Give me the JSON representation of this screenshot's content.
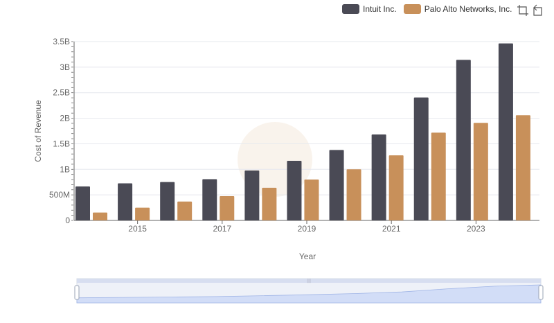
{
  "chart_data": {
    "type": "bar",
    "xlabel": "Year",
    "ylabel": "Cost of Revenue",
    "x": [
      2014,
      2015,
      2016,
      2017,
      2018,
      2019,
      2020,
      2021,
      2022,
      2023,
      2024
    ],
    "xticks": [
      "2015",
      "2017",
      "2019",
      "2021",
      "2023"
    ],
    "yticks": [
      "0",
      "500M",
      "1B",
      "1.5B",
      "2B",
      "2.5B",
      "3B",
      "3.5B"
    ],
    "ylim": [
      0,
      3500000000
    ],
    "grid": true,
    "legend_position": "top-right",
    "series": [
      {
        "name": "Intuit Inc.",
        "color": "#4a4a55",
        "values": [
          665000000,
          725000000,
          752000000,
          808000000,
          977000000,
          1167000000,
          1378000000,
          1683000000,
          2406000000,
          3143000000,
          3465000000
        ]
      },
      {
        "name": "Palo Alto Networks, Inc.",
        "color": "#c8905a",
        "values": [
          155000000,
          250000000,
          370000000,
          475000000,
          640000000,
          800000000,
          1000000000,
          1274000000,
          1718000000,
          1909000000,
          2059000000
        ]
      }
    ]
  },
  "toolbar": {
    "icons": [
      "zoom-icon",
      "restore-icon"
    ]
  },
  "slider": {
    "handle_icon": "drag-handle-icon",
    "range_start": 0,
    "range_end": 1
  }
}
